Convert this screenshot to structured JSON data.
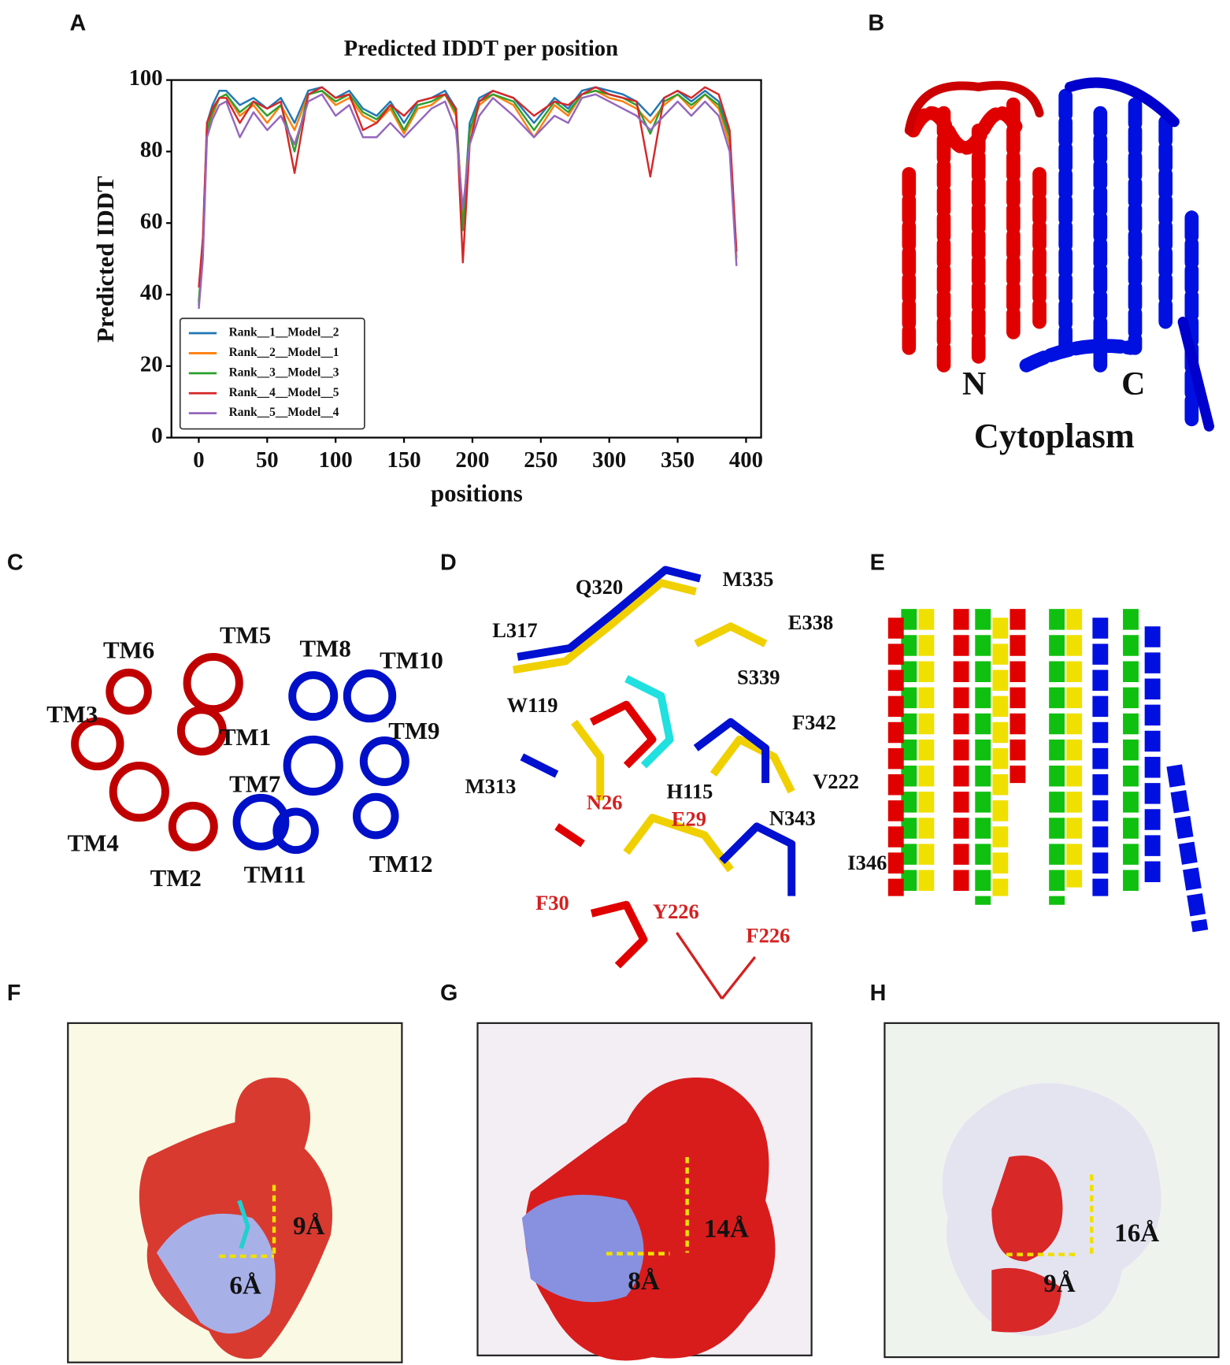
{
  "chart_data": {
    "type": "line",
    "title": "Predicted IDDT per position",
    "xlabel": "positions",
    "ylabel": "Predicted IDDT",
    "x": [
      0,
      3,
      6,
      10,
      15,
      20,
      30,
      40,
      50,
      60,
      70,
      80,
      90,
      100,
      110,
      120,
      130,
      140,
      150,
      160,
      170,
      180,
      188,
      193,
      198,
      205,
      215,
      230,
      245,
      260,
      270,
      280,
      290,
      300,
      310,
      320,
      330,
      340,
      350,
      360,
      370,
      380,
      388,
      393
    ],
    "series": [
      {
        "name": "Rank__1__Model__2",
        "color": "#1f77b4",
        "values": [
          37,
          55,
          88,
          93,
          97,
          97,
          93,
          95,
          92,
          95,
          88,
          97,
          98,
          95,
          97,
          92,
          90,
          94,
          88,
          94,
          95,
          97,
          92,
          60,
          88,
          95,
          97,
          95,
          88,
          95,
          92,
          97,
          98,
          97,
          96,
          94,
          90,
          95,
          97,
          94,
          97,
          94,
          85,
          50
        ]
      },
      {
        "name": "Rank__2__Model__1",
        "color": "#ff7f0e",
        "values": [
          38,
          52,
          85,
          90,
          95,
          96,
          90,
          93,
          88,
          93,
          86,
          96,
          97,
          93,
          95,
          90,
          88,
          92,
          85,
          92,
          93,
          96,
          90,
          62,
          85,
          93,
          96,
          93,
          84,
          93,
          90,
          96,
          97,
          95,
          94,
          92,
          88,
          93,
          96,
          92,
          96,
          92,
          82,
          50
        ]
      },
      {
        "name": "Rank__3__Model__3",
        "color": "#2ca02c",
        "values": [
          38,
          53,
          86,
          91,
          95,
          96,
          91,
          94,
          90,
          93,
          80,
          96,
          97,
          94,
          96,
          91,
          89,
          93,
          86,
          93,
          94,
          96,
          91,
          58,
          86,
          94,
          96,
          94,
          86,
          94,
          91,
          96,
          97,
          96,
          95,
          93,
          85,
          94,
          96,
          93,
          96,
          93,
          84,
          52
        ]
      },
      {
        "name": "Rank__4__Model__5",
        "color": "#d62728",
        "values": [
          42,
          56,
          88,
          92,
          95,
          95,
          88,
          94,
          92,
          94,
          74,
          96,
          98,
          95,
          96,
          86,
          88,
          93,
          90,
          94,
          95,
          96,
          92,
          49,
          82,
          94,
          97,
          95,
          90,
          94,
          93,
          96,
          98,
          96,
          95,
          94,
          73,
          95,
          97,
          95,
          98,
          96,
          86,
          52
        ]
      },
      {
        "name": "Rank__5__Model__4",
        "color": "#9467bd",
        "values": [
          36,
          50,
          84,
          89,
          93,
          94,
          84,
          91,
          86,
          90,
          82,
          94,
          96,
          90,
          93,
          84,
          84,
          88,
          84,
          88,
          92,
          94,
          86,
          64,
          82,
          90,
          95,
          90,
          84,
          90,
          88,
          95,
          96,
          94,
          92,
          90,
          86,
          90,
          94,
          90,
          94,
          90,
          80,
          48
        ]
      }
    ],
    "xlim": [
      -20,
      411
    ],
    "ylim": [
      0,
      100
    ],
    "xticks": [
      0,
      50,
      100,
      150,
      200,
      250,
      300,
      350,
      400
    ],
    "yticks": [
      0,
      20,
      40,
      60,
      80,
      100
    ],
    "legend": "lower left",
    "grid": false
  },
  "panels": {
    "letters": [
      "A",
      "B",
      "C",
      "D",
      "E",
      "F",
      "G",
      "H"
    ],
    "b": {
      "n": "N",
      "c": "C",
      "region": "Cytoplasm"
    },
    "c": {
      "helices": [
        "TM6",
        "TM5",
        "TM8",
        "TM10",
        "TM3",
        "TM1",
        "TM9",
        "TM7",
        "TM4",
        "TM2",
        "TM11",
        "TM12"
      ]
    },
    "d": {
      "residues": [
        "Q320",
        "M335",
        "L317",
        "E338",
        "S339",
        "W119",
        "F342",
        "M313",
        "V222",
        "N26",
        "H115",
        "E29",
        "N343",
        "I346",
        "F30",
        "Y226",
        "F226"
      ]
    },
    "f": {
      "height": "9Å",
      "width": "6Å"
    },
    "g": {
      "height": "14Å",
      "width": "8Å"
    },
    "h": {
      "height": "16Å",
      "width": "9Å"
    }
  }
}
